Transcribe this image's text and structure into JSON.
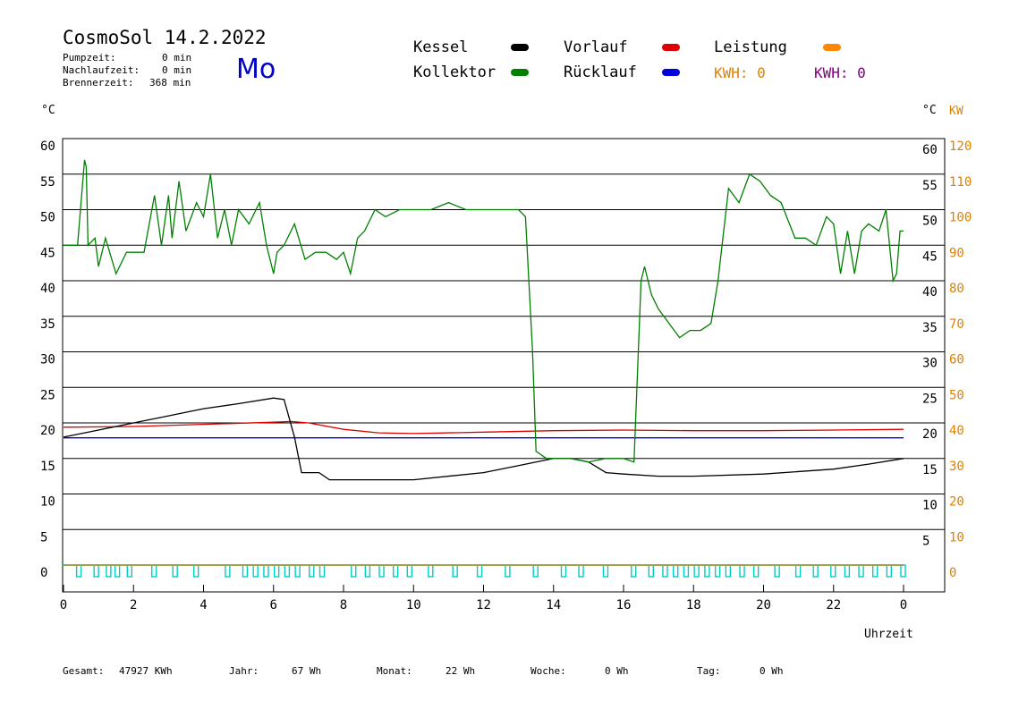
{
  "header": {
    "title": "CosmoSol 14.2.2022",
    "pump_label": "Pumpzeit:",
    "pump_value": "0 min",
    "after_label": "Nachlaufzeit:",
    "after_value": "0 min",
    "burner_label": "Brennerzeit:",
    "burner_value": "368 min",
    "weekday": "Mo"
  },
  "legend": {
    "kessel": "Kessel",
    "kollektor": "Kollektor",
    "vorlauf": "Vorlauf",
    "ruecklauf": "Rücklauf",
    "leistung": "Leistung",
    "kwh_orange": "KWH: 0",
    "kwh_purple": "KWH: 0"
  },
  "axes": {
    "left_unit": "°C",
    "right_unit": "°C",
    "right_unit2": "KW",
    "x_label": "Uhrzeit"
  },
  "footer": {
    "gesamt_label": "Gesamt:",
    "gesamt_value": "47927 KWh",
    "jahr_label": "Jahr:",
    "jahr_value": "67 Wh",
    "monat_label": "Monat:",
    "monat_value": "22 Wh",
    "woche_label": "Woche:",
    "woche_value": "0 Wh",
    "tag_label": "Tag:",
    "tag_value": "0 Wh"
  },
  "colors": {
    "kessel": "#000000",
    "kollektor": "#008000",
    "vorlauf": "#dd0000",
    "ruecklauf": "#0000dd",
    "leistung": "#ff8800",
    "kwh_purple": "#800080",
    "pump": "#00cccc"
  },
  "chart_data": {
    "type": "line",
    "xlabel": "Uhrzeit",
    "ylabel": "°C",
    "ylim": [
      0,
      60
    ],
    "y2lim": [
      0,
      120
    ],
    "xlim": [
      0,
      24
    ],
    "x_ticks": [
      "0",
      "2",
      "4",
      "6",
      "8",
      "10",
      "12",
      "14",
      "16",
      "18",
      "20",
      "22",
      "0"
    ],
    "y_ticks_left": [
      "0",
      "5",
      "10",
      "15",
      "20",
      "25",
      "30",
      "35",
      "40",
      "45",
      "50",
      "55",
      "60"
    ],
    "y_ticks_right": [
      "",
      "5",
      "10",
      "15",
      "20",
      "25",
      "30",
      "35",
      "40",
      "45",
      "50",
      "55",
      "60"
    ],
    "y2_ticks": [
      "0",
      "10",
      "20",
      "30",
      "40",
      "50",
      "60",
      "70",
      "80",
      "90",
      "100",
      "110",
      "120"
    ],
    "grid": true,
    "series": [
      {
        "name": "Kollektor",
        "color": "#008000",
        "x": [
          0,
          0.4,
          0.6,
          0.65,
          0.7,
          0.9,
          1.0,
          1.2,
          1.5,
          1.8,
          2.0,
          2.3,
          2.6,
          2.8,
          3.0,
          3.1,
          3.3,
          3.5,
          3.8,
          4.0,
          4.2,
          4.4,
          4.6,
          4.8,
          5.0,
          5.3,
          5.6,
          5.8,
          6.0,
          6.1,
          6.3,
          6.6,
          6.9,
          7.2,
          7.5,
          7.8,
          8.0,
          8.2,
          8.4,
          8.6,
          8.9,
          9.2,
          9.6,
          10.0,
          10.5,
          11.0,
          11.5,
          12.0,
          12.5,
          13.0,
          13.2,
          13.4,
          13.5,
          13.8,
          14.5,
          15.0,
          15.5,
          16.0,
          16.3,
          16.5,
          16.6,
          16.8,
          17.0,
          17.3,
          17.6,
          17.9,
          18.2,
          18.5,
          18.7,
          19.0,
          19.3,
          19.6,
          19.9,
          20.2,
          20.5,
          20.9,
          21.2,
          21.5,
          21.8,
          22.0,
          22.2,
          22.4,
          22.6,
          22.8,
          23.0,
          23.3,
          23.5,
          23.7,
          23.8,
          23.9,
          24.0
        ],
        "values": [
          45,
          45,
          57,
          56,
          45,
          46,
          42,
          46,
          41,
          44,
          44,
          44,
          52,
          45,
          52,
          46,
          54,
          47,
          51,
          49,
          55,
          46,
          50,
          45,
          50,
          48,
          51,
          45,
          41,
          44,
          45,
          48,
          43,
          44,
          44,
          43,
          44,
          41,
          46,
          47,
          50,
          49,
          50,
          50,
          50,
          51,
          50,
          50,
          50,
          50,
          49,
          30,
          16,
          15,
          15,
          14.5,
          15,
          15,
          14.5,
          40,
          42,
          38,
          36,
          34,
          32,
          33,
          33,
          34,
          40,
          53,
          51,
          55,
          54,
          52,
          51,
          46,
          46,
          45,
          49,
          48,
          41,
          47,
          41,
          47,
          48,
          47,
          50,
          40,
          41,
          47,
          47
        ]
      },
      {
        "name": "Kessel",
        "color": "#000000",
        "x": [
          0,
          1,
          2,
          3,
          3.2,
          4,
          5,
          6,
          6.3,
          6.6,
          6.8,
          7.3,
          7.6,
          8,
          10,
          12,
          13,
          14,
          14.5,
          15,
          15.5,
          16,
          17,
          18,
          20,
          22,
          23,
          24
        ],
        "values": [
          18,
          19,
          20,
          21,
          21.2,
          22,
          22.7,
          23.5,
          23.3,
          18,
          13,
          13,
          12,
          12,
          12,
          13,
          14,
          15,
          15,
          14.5,
          13,
          12.8,
          12.5,
          12.5,
          12.8,
          13.5,
          14.2,
          15
        ]
      },
      {
        "name": "Vorlauf",
        "color": "#dd0000",
        "x": [
          0,
          2,
          4,
          6,
          6.5,
          7,
          8,
          9,
          10,
          12,
          14,
          16,
          18,
          20,
          22,
          24
        ],
        "values": [
          19.4,
          19.5,
          19.8,
          20.1,
          20.2,
          20,
          19.1,
          18.6,
          18.5,
          18.7,
          18.9,
          19,
          18.9,
          18.9,
          19,
          19.1
        ]
      },
      {
        "name": "Rücklauf",
        "color": "#0000dd",
        "x": [
          0,
          24
        ],
        "values": [
          17.9,
          17.9
        ]
      },
      {
        "name": "Leistung",
        "color": "#ff8800",
        "x": [
          0,
          24
        ],
        "values": [
          0,
          0
        ]
      }
    ],
    "pump_marks_x": [
      0.45,
      0.95,
      1.3,
      1.55,
      1.9,
      2.6,
      3.2,
      3.8,
      4.7,
      5.2,
      5.5,
      5.8,
      6.1,
      6.4,
      6.7,
      7.1,
      7.4,
      8.3,
      8.7,
      9.1,
      9.5,
      9.9,
      10.5,
      11.2,
      11.9,
      12.7,
      13.5,
      14.3,
      14.8,
      15.5,
      16.3,
      16.8,
      17.2,
      17.5,
      17.8,
      18.1,
      18.4,
      18.7,
      19.0,
      19.4,
      19.8,
      20.4,
      21.0,
      21.5,
      22.0,
      22.4,
      22.8,
      23.2,
      23.6,
      24.0
    ]
  }
}
